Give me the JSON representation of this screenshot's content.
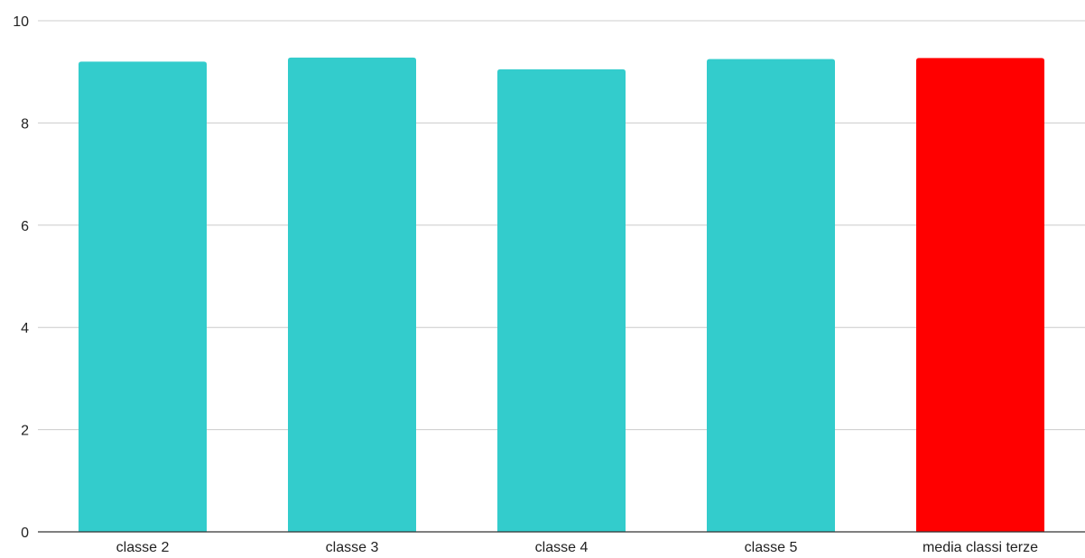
{
  "chart_data": {
    "type": "bar",
    "title": "",
    "xlabel": "",
    "ylabel": "",
    "categories": [
      "classe 2",
      "classe 3",
      "classe 4",
      "classe 5",
      "media classi terze"
    ],
    "values": [
      9.2,
      9.28,
      9.05,
      9.25,
      9.27
    ],
    "ylim": [
      0,
      10
    ],
    "yticks": [
      0,
      2,
      4,
      6,
      8,
      10
    ],
    "grid": true,
    "legend": "none",
    "colors": {
      "bar": "#33cccc",
      "highlight_bar": "#ff0000",
      "gridline": "#cccccc",
      "axis": "#333333",
      "text": "#222222"
    },
    "highlight_index": 4
  }
}
